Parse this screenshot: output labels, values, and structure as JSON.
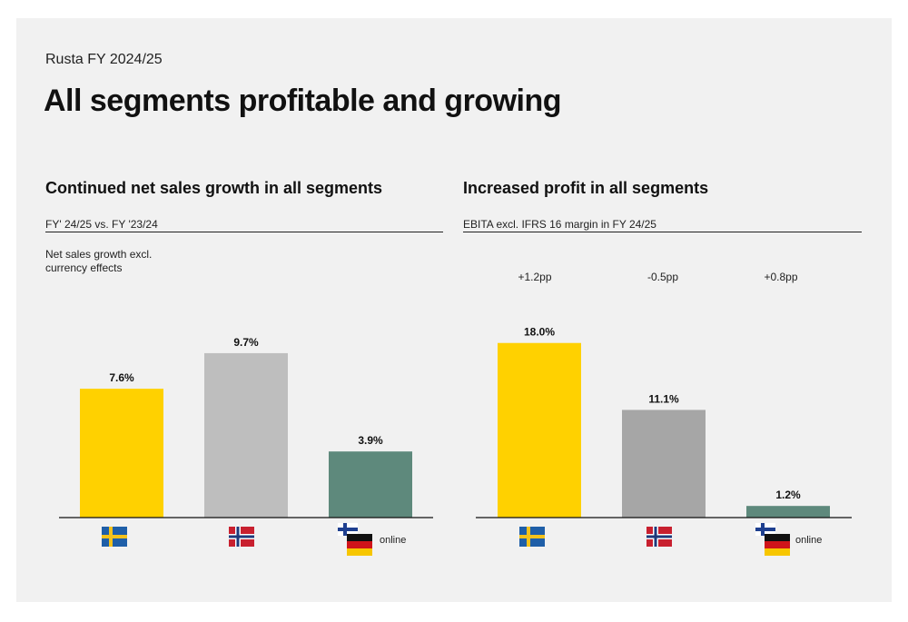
{
  "header": {
    "supertitle": "Rusta FY 2024/25",
    "title": "All segments profitable and growing"
  },
  "left_panel": {
    "title": "Continued net sales growth in all segments",
    "subtitle": "FY' 24/25 vs. FY '23/24",
    "note": "Net sales growth excl. currency effects"
  },
  "right_panel": {
    "title": "Increased profit in all segments",
    "subtitle": "EBITA excl. IFRS 16 margin in FY 24/25",
    "changes": [
      "+1.2pp",
      "-0.5pp",
      "+0.8pp"
    ]
  },
  "category_icons": [
    "sweden-flag-icon",
    "norway-flag-icon",
    "finland-germany-online-flags-icon"
  ],
  "online_label": "online",
  "colors": {
    "yellow": "#FFD100",
    "grey_left": "#BEBEBE",
    "grey_right": "#A6A6A6",
    "green": "#5E897C",
    "background": "#F1F1F1"
  },
  "chart_data": [
    {
      "type": "bar",
      "title": "Continued net sales growth in all segments",
      "categories": [
        "Sweden",
        "Norway",
        "Finland, Germany, online"
      ],
      "values": [
        7.6,
        9.7,
        3.9
      ],
      "value_labels": [
        "7.6%",
        "9.7%",
        "3.9%"
      ],
      "ylim": [
        0,
        12
      ],
      "grid": false,
      "legend": "none"
    },
    {
      "type": "bar",
      "title": "Increased profit in all segments",
      "categories": [
        "Sweden",
        "Norway",
        "Finland, Germany, online"
      ],
      "values": [
        18.0,
        11.1,
        1.2
      ],
      "value_labels": [
        "18.0%",
        "11.1%",
        "1.2%"
      ],
      "annotations": [
        "+1.2pp",
        "-0.5pp",
        "+0.8pp"
      ],
      "ylim": [
        0,
        22
      ],
      "grid": false,
      "legend": "none"
    }
  ]
}
